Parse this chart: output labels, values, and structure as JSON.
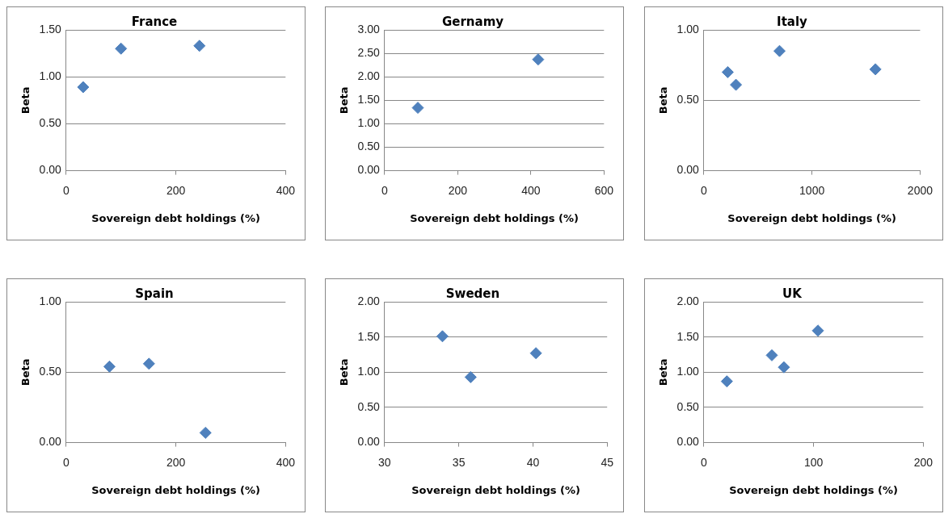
{
  "chart_data": [
    {
      "type": "scatter",
      "title": "France",
      "xlabel": "Sovereign debt holdings (%)",
      "ylabel": "Beta",
      "x": [
        31,
        100,
        243
      ],
      "values": [
        0.89,
        1.3,
        1.33
      ],
      "color": "#4f81bd",
      "marker": "diamond",
      "grid": "y",
      "xlim": [
        0,
        400
      ],
      "xticks": [
        0,
        200,
        400
      ],
      "ylim": [
        0,
        1.5
      ],
      "yticks": [
        {
          "value": 0,
          "label": "0.00"
        },
        {
          "value": 0.5,
          "label": "0.50"
        },
        {
          "value": 1,
          "label": "1.00"
        },
        {
          "value": 1.5,
          "label": "1.50"
        }
      ]
    },
    {
      "type": "scatter",
      "title": "Gernamy",
      "xlabel": "Sovereign debt holdings (%)",
      "ylabel": "Beta",
      "x": [
        91,
        420
      ],
      "values": [
        1.34,
        2.37
      ],
      "color": "#4f81bd",
      "marker": "diamond",
      "grid": "y",
      "xlim": [
        0,
        600
      ],
      "xticks": [
        0,
        200,
        400,
        600
      ],
      "ylim": [
        0,
        3
      ],
      "yticks": [
        {
          "value": 0,
          "label": "0.00"
        },
        {
          "value": 0.5,
          "label": "0.50"
        },
        {
          "value": 1,
          "label": "1.00"
        },
        {
          "value": 1.5,
          "label": "1.50"
        },
        {
          "value": 2,
          "label": "2.00"
        },
        {
          "value": 2.5,
          "label": "2.50"
        },
        {
          "value": 3,
          "label": "3.00"
        }
      ]
    },
    {
      "type": "scatter",
      "title": "Italy",
      "xlabel": "Sovereign debt holdings (%)",
      "ylabel": "Beta",
      "x": [
        221,
        297,
        700,
        1587
      ],
      "values": [
        0.7,
        0.61,
        0.85,
        0.72
      ],
      "color": "#4f81bd",
      "marker": "diamond",
      "grid": "y",
      "xlim": [
        0,
        2000
      ],
      "xticks": [
        0,
        1000,
        2000
      ],
      "ylim": [
        0,
        1
      ],
      "yticks": [
        {
          "value": 0,
          "label": "0.00"
        },
        {
          "value": 0.5,
          "label": "0.50"
        },
        {
          "value": 1,
          "label": "1.00"
        }
      ]
    },
    {
      "type": "scatter",
      "title": "Spain",
      "xlabel": "Sovereign debt holdings (%)",
      "ylabel": "Beta",
      "x": [
        79,
        151,
        254
      ],
      "values": [
        0.54,
        0.56,
        0.07
      ],
      "color": "#4f81bd",
      "marker": "diamond",
      "grid": "y",
      "xlim": [
        0,
        400
      ],
      "xticks": [
        0,
        200,
        400
      ],
      "ylim": [
        0,
        1
      ],
      "yticks": [
        {
          "value": 0,
          "label": "0.00"
        },
        {
          "value": 0.5,
          "label": "0.50"
        },
        {
          "value": 1,
          "label": "1.00"
        }
      ]
    },
    {
      "type": "scatter",
      "title": "Sweden",
      "xlabel": "Sovereign debt holdings (%)",
      "ylabel": "Beta",
      "x": [
        33.9,
        35.8,
        40.2
      ],
      "values": [
        1.51,
        0.93,
        1.27
      ],
      "color": "#4f81bd",
      "marker": "diamond",
      "grid": "y",
      "xlim": [
        30,
        45
      ],
      "xticks": [
        30,
        35,
        40,
        45
      ],
      "ylim": [
        0,
        2
      ],
      "yticks": [
        {
          "value": 0,
          "label": "0.00"
        },
        {
          "value": 0.5,
          "label": "0.50"
        },
        {
          "value": 1,
          "label": "1.00"
        },
        {
          "value": 1.5,
          "label": "1.50"
        },
        {
          "value": 2,
          "label": "2.00"
        }
      ]
    },
    {
      "type": "scatter",
      "title": "UK",
      "xlabel": "Sovereign debt holdings (%)",
      "ylabel": "Beta",
      "x": [
        21,
        62,
        73,
        104
      ],
      "values": [
        0.87,
        1.24,
        1.07,
        1.59
      ],
      "color": "#4f81bd",
      "marker": "diamond",
      "grid": "y",
      "xlim": [
        0,
        200
      ],
      "xticks": [
        0,
        100,
        200
      ],
      "ylim": [
        0,
        2
      ],
      "yticks": [
        {
          "value": 0,
          "label": "0.00"
        },
        {
          "value": 0.5,
          "label": "0.50"
        },
        {
          "value": 1,
          "label": "1.00"
        },
        {
          "value": 1.5,
          "label": "1.50"
        },
        {
          "value": 2,
          "label": "2.00"
        }
      ]
    }
  ]
}
